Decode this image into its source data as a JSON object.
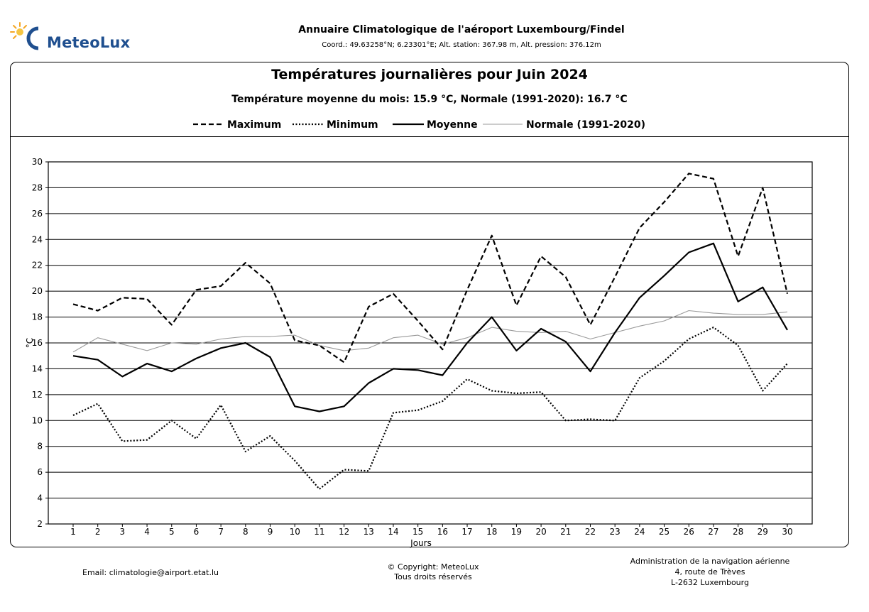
{
  "header": {
    "logo_text": "MeteoLux",
    "title": "Annuaire Climatologique de l'aéroport Luxembourg/Findel",
    "coordinates": "Coord.: 49.63258°N; 6.23301°E; Alt. station: 367.98 m, Alt. pression: 376.12m"
  },
  "footer": {
    "email": "Email: climatologie@airport.etat.lu",
    "copyright_line1": "© Copyright: MeteoLux",
    "copyright_line2": "Tous droits réservés",
    "admin_line1": "Administration de la navigation aérienne",
    "admin_line2": "4, route de Trèves",
    "admin_line3": "L-2632 Luxembourg"
  },
  "chart_data": {
    "type": "line",
    "title": "Températures journalières pour Juin 2024",
    "subtitle": "Température moyenne du mois: 15.9 °C, Normale (1991-2020): 16.7 °C",
    "xlabel": "Jours",
    "ylabel": "°C",
    "ylim": [
      2,
      30
    ],
    "yticks": [
      2,
      4,
      6,
      8,
      10,
      12,
      14,
      16,
      18,
      20,
      22,
      24,
      26,
      28,
      30
    ],
    "grid": true,
    "legend_position": "top",
    "x": [
      1,
      2,
      3,
      4,
      5,
      6,
      7,
      8,
      9,
      10,
      11,
      12,
      13,
      14,
      15,
      16,
      17,
      18,
      19,
      20,
      21,
      22,
      23,
      24,
      25,
      26,
      27,
      28,
      29,
      30
    ],
    "series": [
      {
        "name": "Maximum",
        "style": "dashed",
        "values": [
          19.0,
          18.5,
          19.5,
          19.4,
          17.4,
          20.1,
          20.4,
          22.2,
          20.6,
          16.2,
          15.8,
          14.5,
          18.8,
          19.8,
          17.7,
          15.5,
          20.1,
          24.3,
          18.9,
          22.7,
          21.1,
          17.4,
          21.1,
          24.9,
          26.9,
          29.1,
          28.7,
          22.7,
          28.0,
          19.8
        ]
      },
      {
        "name": "Minimum",
        "style": "dotted",
        "values": [
          10.4,
          11.3,
          8.4,
          8.5,
          10.0,
          8.6,
          11.2,
          7.6,
          8.8,
          6.9,
          4.7,
          6.2,
          6.1,
          10.6,
          10.8,
          11.5,
          13.2,
          12.3,
          12.1,
          12.2,
          10.0,
          10.1,
          10.0,
          13.3,
          14.6,
          16.3,
          17.2,
          15.8,
          12.3,
          14.4
        ]
      },
      {
        "name": "Moyenne",
        "style": "solid",
        "values": [
          15.0,
          14.7,
          13.4,
          14.4,
          13.8,
          14.8,
          15.6,
          16.0,
          14.9,
          11.1,
          10.7,
          11.1,
          12.9,
          14.0,
          13.9,
          13.5,
          16.0,
          18.0,
          15.4,
          17.1,
          16.1,
          13.8,
          16.8,
          19.5,
          21.2,
          23.0,
          23.7,
          19.2,
          20.3,
          17.0
        ]
      },
      {
        "name": "Normale (1991-2020)",
        "style": "thin-gray",
        "values": [
          15.3,
          16.4,
          15.9,
          15.4,
          16.0,
          15.9,
          16.3,
          16.5,
          16.5,
          16.6,
          15.8,
          15.4,
          15.6,
          16.4,
          16.6,
          15.9,
          16.4,
          17.2,
          16.9,
          16.8,
          16.9,
          16.3,
          16.8,
          17.3,
          17.7,
          18.5,
          18.3,
          18.2,
          18.2,
          18.4
        ]
      }
    ],
    "colors": {
      "Maximum": "#000000",
      "Minimum": "#000000",
      "Moyenne": "#000000",
      "Normale (1991-2020)": "#999999"
    }
  }
}
